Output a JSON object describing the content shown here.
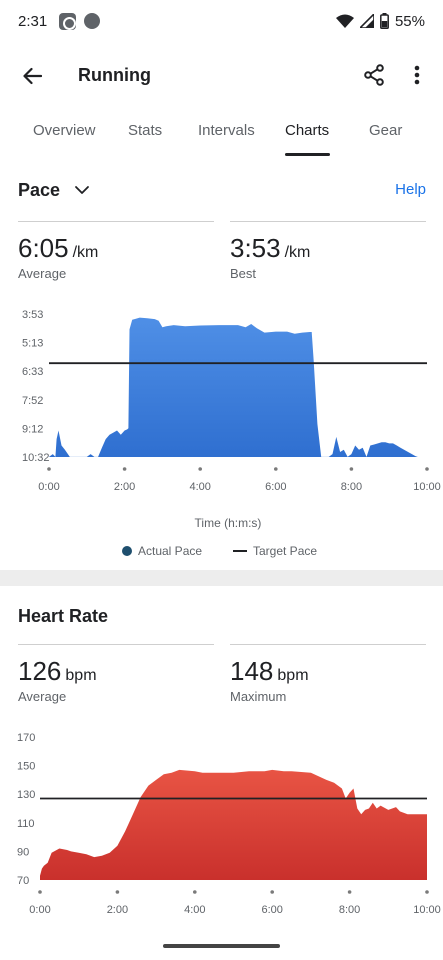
{
  "status_bar": {
    "time": "2:31",
    "battery": "55%"
  },
  "app_bar": {
    "title": "Running"
  },
  "tabs": [
    {
      "label": "Overview",
      "active": false
    },
    {
      "label": "Stats",
      "active": false
    },
    {
      "label": "Intervals",
      "active": false
    },
    {
      "label": "Charts",
      "active": true
    },
    {
      "label": "Gear",
      "active": false
    }
  ],
  "pace": {
    "title": "Pace",
    "help_label": "Help",
    "average": {
      "value": "6:05",
      "unit": "/km",
      "label": "Average"
    },
    "best": {
      "value": "3:53",
      "unit": "/km",
      "label": "Best"
    },
    "x_axis_title": "Time (h:m:s)",
    "legend": {
      "actual": "Actual Pace",
      "target": "Target Pace"
    }
  },
  "heart_rate": {
    "title": "Heart Rate",
    "average": {
      "value": "126",
      "unit": "bpm",
      "label": "Average"
    },
    "maximum": {
      "value": "148",
      "unit": "bpm",
      "label": "Maximum"
    }
  },
  "colors": {
    "pace_fill_top": "#4f8fe6",
    "pace_fill_bottom": "#2f6fd0",
    "hr_fill_top": "#e85444",
    "hr_fill_bottom": "#c9302c",
    "accent_link": "#1a73e8",
    "legend_dot": "#1e4f6e"
  },
  "chart_data": [
    {
      "type": "area",
      "name": "pace",
      "xlabel": "Time (h:m:s)",
      "x_ticks": [
        "0:00",
        "2:00",
        "4:00",
        "6:00",
        "8:00",
        "10:00"
      ],
      "y_ticks": [
        "3:53",
        "5:13",
        "6:33",
        "7:52",
        "9:12",
        "10:32"
      ],
      "y_inverted": true,
      "ylim_min_per_km": [
        3.883,
        10.533
      ],
      "xlim_min": [
        0,
        10
      ],
      "series": [
        {
          "name": "Actual Pace",
          "x_min": [
            0.0,
            0.1,
            0.17,
            0.2,
            0.25,
            0.33,
            0.42,
            0.55,
            0.7,
            0.8,
            0.9,
            1.0,
            1.1,
            1.2,
            1.3,
            1.4,
            1.5,
            1.6,
            1.7,
            1.8,
            1.9,
            2.0,
            2.07,
            2.1,
            2.13,
            2.2,
            2.3,
            2.4,
            2.6,
            2.8,
            2.9,
            3.0,
            3.1,
            3.3,
            3.6,
            4.0,
            4.5,
            5.0,
            5.2,
            5.35,
            5.5,
            5.7,
            6.0,
            6.3,
            6.5,
            6.7,
            6.9,
            6.95,
            7.0,
            7.1,
            7.2,
            7.25,
            7.3,
            7.35,
            7.4,
            7.5,
            7.6,
            7.7,
            7.8,
            7.9,
            8.0,
            8.1,
            8.2,
            8.3,
            8.4,
            8.5,
            8.6,
            8.7,
            8.8,
            8.9,
            9.0,
            9.1,
            9.2,
            9.3,
            9.5,
            9.7,
            9.75
          ],
          "pace_min_per_km": [
            10.53,
            10.4,
            10.53,
            9.7,
            9.3,
            10.0,
            10.2,
            10.53,
            10.53,
            10.53,
            10.53,
            10.53,
            10.4,
            10.53,
            10.53,
            10.1,
            9.7,
            9.5,
            9.4,
            9.3,
            9.5,
            9.3,
            9.25,
            9.2,
            4.6,
            4.15,
            4.1,
            4.05,
            4.08,
            4.12,
            4.2,
            4.5,
            4.45,
            4.4,
            4.45,
            4.42,
            4.4,
            4.4,
            4.5,
            4.35,
            4.55,
            4.75,
            4.7,
            4.7,
            4.8,
            4.75,
            4.72,
            4.72,
            6.0,
            9.0,
            10.53,
            10.53,
            10.53,
            10.53,
            10.53,
            10.4,
            9.6,
            10.3,
            10.2,
            10.53,
            10.4,
            10.0,
            10.2,
            10.1,
            10.53,
            10.0,
            9.95,
            9.9,
            9.85,
            9.85,
            9.9,
            9.9,
            10.0,
            10.1,
            10.3,
            10.5,
            10.53
          ]
        },
        {
          "name": "Target Pace",
          "pace_min_per_km": 6.17
        }
      ]
    },
    {
      "type": "area",
      "name": "heart_rate",
      "x_ticks": [
        "0:00",
        "2:00",
        "4:00",
        "6:00",
        "8:00",
        "10:00"
      ],
      "y_ticks": [
        "170",
        "150",
        "130",
        "110",
        "90",
        "70"
      ],
      "ylim": [
        70,
        170
      ],
      "xlim_min": [
        0,
        10
      ],
      "series": [
        {
          "name": "Heart Rate",
          "x_min": [
            0.0,
            0.05,
            0.1,
            0.2,
            0.3,
            0.5,
            0.7,
            0.8,
            1.0,
            1.2,
            1.4,
            1.6,
            1.8,
            2.0,
            2.2,
            2.4,
            2.6,
            2.8,
            3.0,
            3.2,
            3.4,
            3.6,
            4.0,
            4.2,
            4.5,
            4.8,
            5.0,
            5.4,
            5.8,
            6.0,
            6.3,
            6.5,
            7.0,
            7.4,
            7.6,
            7.8,
            7.9,
            8.0,
            8.1,
            8.2,
            8.3,
            8.4,
            8.5,
            8.6,
            8.7,
            8.8,
            9.0,
            9.2,
            9.3,
            9.5,
            9.7,
            10.0
          ],
          "bpm": [
            73,
            78,
            80,
            82,
            89,
            92,
            91,
            90,
            89,
            88,
            86,
            87,
            89,
            94,
            104,
            116,
            128,
            136,
            140,
            144,
            145,
            147,
            146,
            145,
            145,
            145,
            145,
            146,
            146,
            147,
            146,
            146,
            145,
            140,
            138,
            134,
            127,
            131,
            134,
            120,
            116,
            119,
            120,
            124,
            120,
            122,
            119,
            121,
            118,
            116,
            116,
            116
          ]
        },
        {
          "name": "Target",
          "bpm": 127
        }
      ]
    }
  ]
}
